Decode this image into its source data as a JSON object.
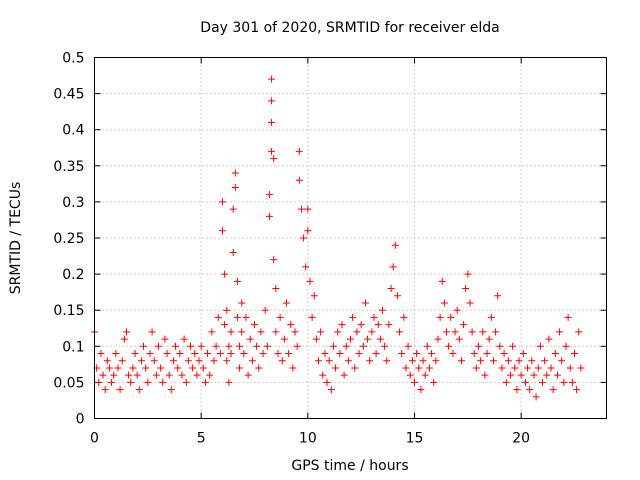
{
  "chart_data": {
    "type": "scatter",
    "title": "Day 301 of 2020, SRMTID for receiver elda",
    "xlabel": "GPS time / hours",
    "ylabel": "SRMTID / TECUs",
    "xlim": [
      0,
      24
    ],
    "ylim": [
      0,
      0.5
    ],
    "xticks": [
      0,
      5,
      10,
      15,
      20
    ],
    "xtick_labels": [
      "0",
      "5",
      "10",
      "15",
      "20"
    ],
    "yticks": [
      0,
      0.05,
      0.1,
      0.15,
      0.2,
      0.25,
      0.3,
      0.35,
      0.4,
      0.45,
      0.5
    ],
    "ytick_labels": [
      "0",
      "0.05",
      "0.1",
      "0.15",
      "0.2",
      "0.25",
      "0.3",
      "0.35",
      "0.4",
      "0.45",
      "0.5"
    ],
    "grid": true,
    "marker": "+",
    "series_color": "#ff0000",
    "series": [
      {
        "name": "SRMTID",
        "points": [
          [
            0.0,
            0.12
          ],
          [
            0.1,
            0.07
          ],
          [
            0.2,
            0.05
          ],
          [
            0.3,
            0.09
          ],
          [
            0.4,
            0.06
          ],
          [
            0.5,
            0.04
          ],
          [
            0.6,
            0.08
          ],
          [
            0.7,
            0.07
          ],
          [
            0.8,
            0.05
          ],
          [
            0.9,
            0.06
          ],
          [
            1.0,
            0.09
          ],
          [
            1.1,
            0.07
          ],
          [
            1.2,
            0.04
          ],
          [
            1.3,
            0.08
          ],
          [
            1.4,
            0.11
          ],
          [
            1.5,
            0.12
          ],
          [
            1.6,
            0.06
          ],
          [
            1.7,
            0.05
          ],
          [
            1.8,
            0.07
          ],
          [
            1.9,
            0.09
          ],
          [
            2.0,
            0.06
          ],
          [
            2.1,
            0.04
          ],
          [
            2.2,
            0.08
          ],
          [
            2.3,
            0.1
          ],
          [
            2.4,
            0.07
          ],
          [
            2.5,
            0.05
          ],
          [
            2.6,
            0.09
          ],
          [
            2.7,
            0.12
          ],
          [
            2.8,
            0.08
          ],
          [
            2.9,
            0.06
          ],
          [
            3.0,
            0.1
          ],
          [
            3.1,
            0.07
          ],
          [
            3.2,
            0.05
          ],
          [
            3.3,
            0.11
          ],
          [
            3.4,
            0.09
          ],
          [
            3.5,
            0.06
          ],
          [
            3.6,
            0.04
          ],
          [
            3.7,
            0.08
          ],
          [
            3.8,
            0.1
          ],
          [
            3.9,
            0.07
          ],
          [
            4.0,
            0.09
          ],
          [
            4.1,
            0.06
          ],
          [
            4.2,
            0.11
          ],
          [
            4.3,
            0.05
          ],
          [
            4.4,
            0.08
          ],
          [
            4.5,
            0.1
          ],
          [
            4.6,
            0.07
          ],
          [
            4.7,
            0.09
          ],
          [
            4.8,
            0.06
          ],
          [
            4.9,
            0.08
          ],
          [
            5.0,
            0.1
          ],
          [
            5.1,
            0.07
          ],
          [
            5.2,
            0.05
          ],
          [
            5.3,
            0.09
          ],
          [
            5.4,
            0.06
          ],
          [
            5.5,
            0.12
          ],
          [
            5.6,
            0.08
          ],
          [
            5.7,
            0.1
          ],
          [
            5.8,
            0.14
          ],
          [
            5.9,
            0.09
          ],
          [
            6.0,
            0.3
          ],
          [
            6.0,
            0.26
          ],
          [
            6.1,
            0.2
          ],
          [
            6.1,
            0.13
          ],
          [
            6.2,
            0.08
          ],
          [
            6.2,
            0.15
          ],
          [
            6.3,
            0.1
          ],
          [
            6.3,
            0.05
          ],
          [
            6.4,
            0.09
          ],
          [
            6.4,
            0.12
          ],
          [
            6.5,
            0.29
          ],
          [
            6.5,
            0.23
          ],
          [
            6.6,
            0.34
          ],
          [
            6.6,
            0.32
          ],
          [
            6.7,
            0.19
          ],
          [
            6.7,
            0.14
          ],
          [
            6.8,
            0.1
          ],
          [
            6.8,
            0.07
          ],
          [
            6.9,
            0.16
          ],
          [
            6.9,
            0.12
          ],
          [
            7.0,
            0.09
          ],
          [
            7.1,
            0.14
          ],
          [
            7.2,
            0.06
          ],
          [
            7.3,
            0.11
          ],
          [
            7.4,
            0.08
          ],
          [
            7.5,
            0.13
          ],
          [
            7.6,
            0.1
          ],
          [
            7.7,
            0.07
          ],
          [
            7.8,
            0.12
          ],
          [
            7.9,
            0.09
          ],
          [
            8.0,
            0.15
          ],
          [
            8.1,
            0.1
          ],
          [
            8.2,
            0.31
          ],
          [
            8.2,
            0.28
          ],
          [
            8.3,
            0.47
          ],
          [
            8.3,
            0.44
          ],
          [
            8.3,
            0.41
          ],
          [
            8.3,
            0.37
          ],
          [
            8.4,
            0.36
          ],
          [
            8.4,
            0.22
          ],
          [
            8.5,
            0.18
          ],
          [
            8.5,
            0.12
          ],
          [
            8.6,
            0.09
          ],
          [
            8.7,
            0.14
          ],
          [
            8.8,
            0.08
          ],
          [
            8.9,
            0.11
          ],
          [
            9.0,
            0.16
          ],
          [
            9.1,
            0.09
          ],
          [
            9.2,
            0.13
          ],
          [
            9.3,
            0.07
          ],
          [
            9.4,
            0.12
          ],
          [
            9.5,
            0.1
          ],
          [
            9.6,
            0.37
          ],
          [
            9.6,
            0.33
          ],
          [
            9.7,
            0.29
          ],
          [
            9.8,
            0.25
          ],
          [
            9.9,
            0.21
          ],
          [
            10.0,
            0.29
          ],
          [
            10.0,
            0.26
          ],
          [
            10.1,
            0.19
          ],
          [
            10.2,
            0.14
          ],
          [
            10.3,
            0.17
          ],
          [
            10.4,
            0.11
          ],
          [
            10.5,
            0.08
          ],
          [
            10.6,
            0.12
          ],
          [
            10.7,
            0.06
          ],
          [
            10.8,
            0.09
          ],
          [
            10.9,
            0.05
          ],
          [
            11.0,
            0.08
          ],
          [
            11.1,
            0.04
          ],
          [
            11.2,
            0.1
          ],
          [
            11.3,
            0.07
          ],
          [
            11.4,
            0.12
          ],
          [
            11.5,
            0.09
          ],
          [
            11.6,
            0.13
          ],
          [
            11.7,
            0.06
          ],
          [
            11.8,
            0.1
          ],
          [
            11.9,
            0.08
          ],
          [
            12.0,
            0.11
          ],
          [
            12.1,
            0.14
          ],
          [
            12.2,
            0.07
          ],
          [
            12.3,
            0.12
          ],
          [
            12.4,
            0.09
          ],
          [
            12.5,
            0.13
          ],
          [
            12.6,
            0.1
          ],
          [
            12.7,
            0.16
          ],
          [
            12.8,
            0.11
          ],
          [
            12.9,
            0.08
          ],
          [
            13.0,
            0.12
          ],
          [
            13.1,
            0.14
          ],
          [
            13.2,
            0.09
          ],
          [
            13.3,
            0.13
          ],
          [
            13.4,
            0.11
          ],
          [
            13.5,
            0.15
          ],
          [
            13.6,
            0.1
          ],
          [
            13.7,
            0.08
          ],
          [
            13.8,
            0.13
          ],
          [
            13.9,
            0.18
          ],
          [
            14.0,
            0.21
          ],
          [
            14.1,
            0.24
          ],
          [
            14.2,
            0.17
          ],
          [
            14.3,
            0.12
          ],
          [
            14.4,
            0.09
          ],
          [
            14.5,
            0.14
          ],
          [
            14.6,
            0.07
          ],
          [
            14.7,
            0.1
          ],
          [
            14.8,
            0.06
          ],
          [
            14.9,
            0.08
          ],
          [
            15.0,
            0.05
          ],
          [
            15.1,
            0.09
          ],
          [
            15.2,
            0.07
          ],
          [
            15.3,
            0.04
          ],
          [
            15.4,
            0.08
          ],
          [
            15.5,
            0.06
          ],
          [
            15.6,
            0.1
          ],
          [
            15.7,
            0.07
          ],
          [
            15.8,
            0.09
          ],
          [
            15.9,
            0.05
          ],
          [
            16.0,
            0.08
          ],
          [
            16.1,
            0.11
          ],
          [
            16.2,
            0.14
          ],
          [
            16.3,
            0.19
          ],
          [
            16.4,
            0.16
          ],
          [
            16.5,
            0.12
          ],
          [
            16.6,
            0.1
          ],
          [
            16.7,
            0.14
          ],
          [
            16.8,
            0.09
          ],
          [
            16.9,
            0.12
          ],
          [
            17.0,
            0.15
          ],
          [
            17.1,
            0.11
          ],
          [
            17.2,
            0.08
          ],
          [
            17.3,
            0.13
          ],
          [
            17.4,
            0.18
          ],
          [
            17.5,
            0.2
          ],
          [
            17.6,
            0.16
          ],
          [
            17.7,
            0.12
          ],
          [
            17.8,
            0.09
          ],
          [
            17.9,
            0.07
          ],
          [
            18.0,
            0.1
          ],
          [
            18.1,
            0.08
          ],
          [
            18.2,
            0.12
          ],
          [
            18.3,
            0.06
          ],
          [
            18.4,
            0.09
          ],
          [
            18.5,
            0.11
          ],
          [
            18.6,
            0.14
          ],
          [
            18.7,
            0.08
          ],
          [
            18.8,
            0.12
          ],
          [
            18.9,
            0.17
          ],
          [
            19.0,
            0.1
          ],
          [
            19.1,
            0.07
          ],
          [
            19.2,
            0.09
          ],
          [
            19.3,
            0.05
          ],
          [
            19.4,
            0.08
          ],
          [
            19.5,
            0.06
          ],
          [
            19.6,
            0.1
          ],
          [
            19.7,
            0.07
          ],
          [
            19.8,
            0.04
          ],
          [
            19.9,
            0.08
          ],
          [
            20.0,
            0.06
          ],
          [
            20.1,
            0.09
          ],
          [
            20.2,
            0.05
          ],
          [
            20.3,
            0.07
          ],
          [
            20.4,
            0.04
          ],
          [
            20.5,
            0.08
          ],
          [
            20.6,
            0.06
          ],
          [
            20.7,
            0.03
          ],
          [
            20.8,
            0.07
          ],
          [
            20.9,
            0.1
          ],
          [
            21.0,
            0.05
          ],
          [
            21.1,
            0.08
          ],
          [
            21.2,
            0.06
          ],
          [
            21.3,
            0.11
          ],
          [
            21.4,
            0.07
          ],
          [
            21.5,
            0.04
          ],
          [
            21.6,
            0.09
          ],
          [
            21.7,
            0.06
          ],
          [
            21.8,
            0.12
          ],
          [
            21.9,
            0.08
          ],
          [
            22.0,
            0.05
          ],
          [
            22.1,
            0.1
          ],
          [
            22.2,
            0.14
          ],
          [
            22.3,
            0.07
          ],
          [
            22.4,
            0.05
          ],
          [
            22.5,
            0.09
          ],
          [
            22.6,
            0.04
          ],
          [
            22.7,
            0.12
          ],
          [
            22.8,
            0.07
          ]
        ]
      }
    ]
  }
}
